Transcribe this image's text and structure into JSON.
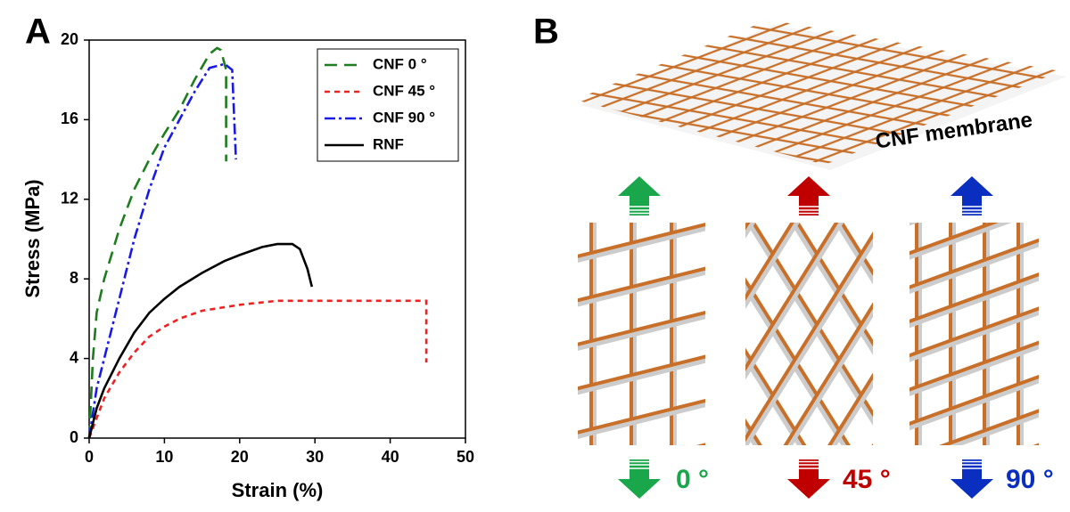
{
  "panel_labels": [
    "A",
    "B"
  ],
  "chart_data": {
    "type": "line",
    "x_label": "Strain (%)",
    "y_label": "Stress (MPa)",
    "xlim": [
      0,
      50
    ],
    "xticks": [
      0,
      10,
      20,
      30,
      40,
      50
    ],
    "ylim": [
      0,
      20
    ],
    "yticks": [
      0,
      4,
      8,
      12,
      16,
      20
    ],
    "legend": "upper right",
    "series": [
      {
        "name": "CNF 0 °",
        "color": "#1e7d1e",
        "line_style": "long-dash",
        "x": [
          0,
          0.5,
          1,
          2,
          4,
          6,
          8,
          10,
          12,
          14,
          16,
          17,
          17.5,
          18.2,
          18.2
        ],
        "values": [
          0,
          4,
          6.3,
          8,
          10.5,
          12.5,
          14,
          15.3,
          16.5,
          18,
          19.3,
          19.6,
          19.5,
          18.5,
          13.9
        ]
      },
      {
        "name": "CNF 45 °",
        "color": "#ee2222",
        "line_style": "short-dash",
        "x": [
          0,
          1,
          2,
          4,
          6,
          8,
          10,
          12,
          15,
          20,
          25,
          30,
          35,
          40,
          44.8,
          44.8
        ],
        "values": [
          0,
          1,
          2,
          3.3,
          4.3,
          5.1,
          5.6,
          6,
          6.4,
          6.7,
          6.9,
          6.9,
          6.9,
          6.9,
          6.9,
          3.8
        ]
      },
      {
        "name": "CNF 90 °",
        "color": "#1a1ae6",
        "line_style": "dash-dot",
        "x": [
          0,
          1,
          2,
          4,
          6,
          8,
          10,
          12,
          14,
          16,
          17,
          18,
          19,
          19.5
        ],
        "values": [
          0,
          2.5,
          4,
          7,
          10,
          12.5,
          14.6,
          16,
          17.4,
          18.6,
          18.7,
          18.8,
          18.5,
          14
        ]
      },
      {
        "name": "RNF",
        "color": "#000000",
        "line_style": "solid",
        "x": [
          0,
          1,
          2,
          4,
          6,
          8,
          10,
          12,
          15,
          18,
          20,
          23,
          25,
          27,
          28,
          29,
          29.6
        ],
        "values": [
          0,
          1.5,
          2.5,
          4,
          5.3,
          6.3,
          7,
          7.6,
          8.3,
          8.9,
          9.2,
          9.6,
          9.75,
          9.75,
          9.5,
          8.5,
          7.6
        ]
      }
    ]
  },
  "diagram": {
    "membrane_label": "CNF membrane",
    "angles": [
      "0 °",
      "45 °",
      "90 °"
    ]
  }
}
